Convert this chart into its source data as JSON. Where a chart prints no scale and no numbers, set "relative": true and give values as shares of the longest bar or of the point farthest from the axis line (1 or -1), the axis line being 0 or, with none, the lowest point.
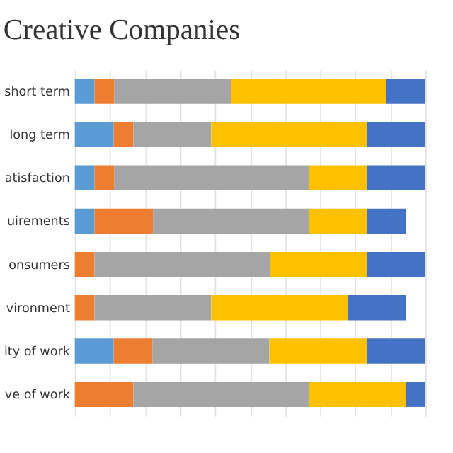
{
  "chart_data": {
    "type": "bar",
    "title": "Creative Companies",
    "orientation": "horizontal",
    "stacked": true,
    "relative": true,
    "grid": "x",
    "tick_labels": "y",
    "categories": [
      "short term",
      "long term",
      "atisfaction",
      "uirements",
      "onsumers",
      "vironment",
      "ity of work",
      "ve of work"
    ],
    "series": [
      {
        "color": "#5b9bd5",
        "values": [
          0.056,
          0.111,
          0.056,
          0.056,
          null,
          null,
          0.111,
          null
        ]
      },
      {
        "color": "#ed7d31",
        "values": [
          0.056,
          0.056,
          0.056,
          0.167,
          0.056,
          0.056,
          0.111,
          0.167
        ]
      },
      {
        "color": "#a5a5a5",
        "values": [
          0.333,
          0.222,
          0.555,
          0.444,
          0.5,
          0.333,
          0.333,
          0.5
        ]
      },
      {
        "color": "#ffc000",
        "values": [
          0.444,
          0.444,
          0.167,
          0.167,
          0.278,
          0.389,
          0.278,
          0.277
        ]
      },
      {
        "color": "#4472c4",
        "values": [
          0.111,
          0.167,
          0.166,
          0.111,
          0.166,
          0.167,
          0.167,
          0.056
        ]
      }
    ]
  }
}
